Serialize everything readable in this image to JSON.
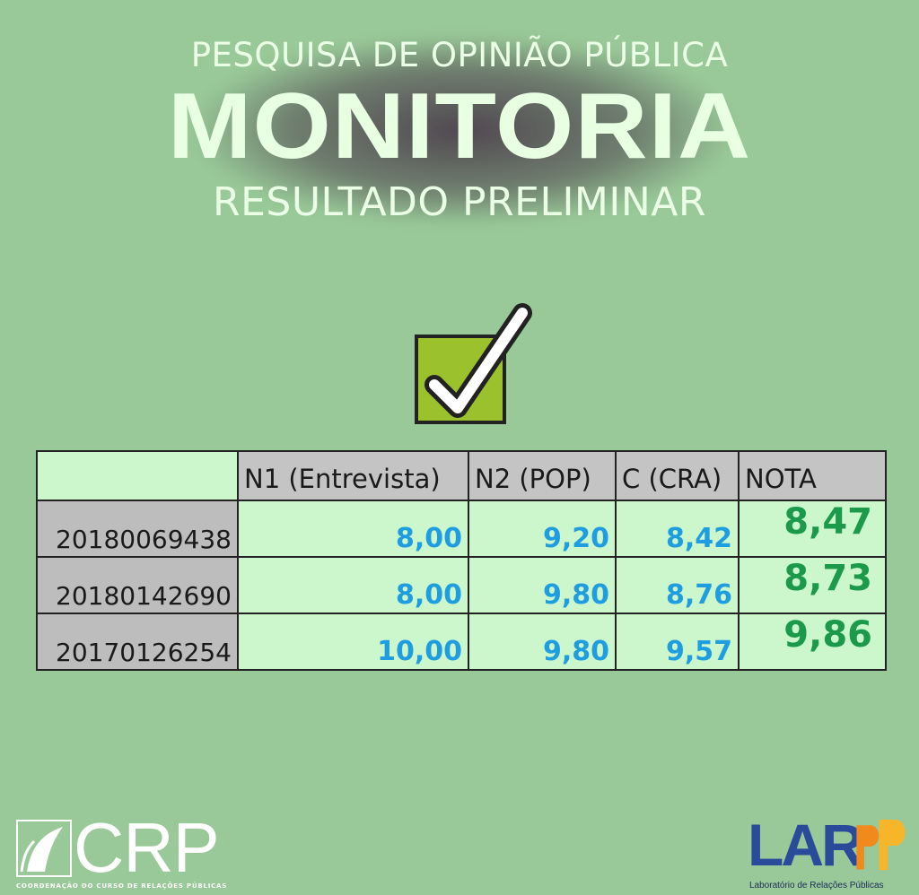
{
  "header": {
    "top_line": "PESQUISA DE OPINIÃO PÚBLICA",
    "main_title": "MONITORIA",
    "sub_title": "RESULTADO PRELIMINAR"
  },
  "icons": {
    "status": "check-box-icon"
  },
  "colors": {
    "background": "#99c998",
    "checkbox_fill": "#9bc12c",
    "numbers": "#1e9ee0",
    "nota": "#1a9a4a"
  },
  "table": {
    "columns": [
      "",
      "N1 (Entrevista)",
      "N2 (POP)",
      "C (CRA)",
      "NOTA"
    ],
    "rows": [
      {
        "id": "20180069438",
        "n1": "8,00",
        "n2": "9,20",
        "c": "8,42",
        "nota": "8,47"
      },
      {
        "id": "20180142690",
        "n1": "8,00",
        "n2": "9,80",
        "c": "8,76",
        "nota": "8,73"
      },
      {
        "id": "20170126254",
        "n1": "10,00",
        "n2": "9,80",
        "c": "9,57",
        "nota": "9,86"
      }
    ]
  },
  "logos": {
    "left": {
      "text": "CRP",
      "caption": "COORDENAÇÃO DO CURSO DE RELAÇÕES PÚBLICAS"
    },
    "right": {
      "text": "LAR",
      "caption": "Laboratório de Relações Públicas"
    }
  }
}
